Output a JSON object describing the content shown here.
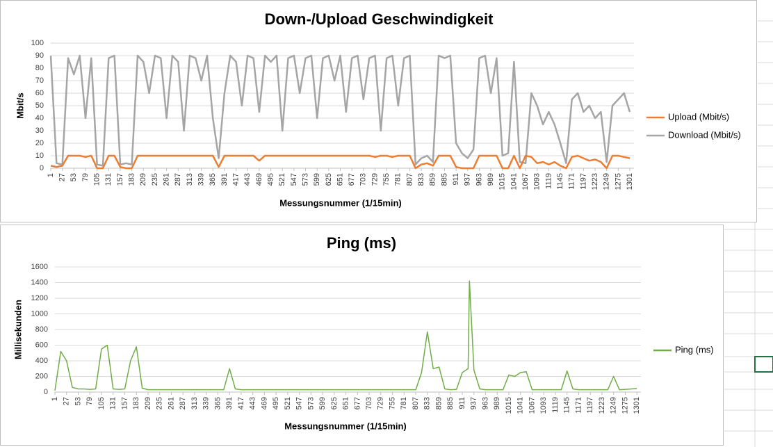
{
  "chart_data": [
    {
      "type": "line",
      "title": "Down-/Upload Geschwindigkeit",
      "x_label": "Messungsnummer (1/15min)",
      "y_label": "Mbit/s",
      "x": [
        1,
        14,
        27,
        40,
        53,
        66,
        79,
        92,
        105,
        118,
        131,
        144,
        157,
        170,
        183,
        196,
        209,
        222,
        235,
        248,
        261,
        274,
        287,
        300,
        313,
        326,
        339,
        352,
        365,
        378,
        391,
        404,
        417,
        430,
        443,
        456,
        469,
        482,
        495,
        508,
        521,
        534,
        547,
        560,
        573,
        586,
        599,
        612,
        625,
        638,
        651,
        664,
        677,
        690,
        703,
        716,
        729,
        742,
        755,
        768,
        781,
        794,
        807,
        820,
        833,
        846,
        859,
        872,
        885,
        898,
        911,
        924,
        937,
        950,
        963,
        976,
        989,
        1002,
        1015,
        1028,
        1041,
        1054,
        1067,
        1080,
        1093,
        1106,
        1119,
        1132,
        1145,
        1158,
        1171,
        1184,
        1197,
        1210,
        1223,
        1236,
        1249,
        1262,
        1275,
        1288,
        1301
      ],
      "series": [
        {
          "name": "Upload (Mbit/s)",
          "color": "#ed7d31",
          "values": [
            2,
            1,
            2,
            10,
            10,
            10,
            9,
            10,
            0,
            0,
            10,
            10,
            1,
            0,
            0,
            10,
            10,
            10,
            10,
            10,
            10,
            10,
            10,
            10,
            10,
            10,
            10,
            10,
            10,
            1,
            10,
            10,
            10,
            10,
            10,
            10,
            6,
            10,
            10,
            10,
            10,
            10,
            10,
            10,
            10,
            10,
            10,
            10,
            10,
            10,
            10,
            10,
            10,
            10,
            10,
            10,
            9,
            10,
            10,
            9,
            10,
            10,
            10,
            0,
            3,
            4,
            2,
            10,
            10,
            10,
            1,
            0,
            0,
            0,
            10,
            10,
            10,
            10,
            0,
            0,
            10,
            0,
            10,
            9,
            4,
            5,
            3,
            5,
            2,
            0,
            9,
            10,
            8,
            6,
            7,
            5,
            0,
            10,
            10,
            9,
            8
          ]
        },
        {
          "name": "Download (Mbit/s)",
          "color": "#a5a5a5",
          "values": [
            90,
            4,
            3,
            88,
            75,
            90,
            40,
            88,
            3,
            2,
            88,
            90,
            3,
            4,
            3,
            90,
            85,
            60,
            90,
            88,
            40,
            90,
            85,
            30,
            90,
            88,
            70,
            90,
            40,
            8,
            60,
            90,
            85,
            50,
            90,
            88,
            45,
            90,
            85,
            90,
            30,
            88,
            90,
            60,
            88,
            90,
            40,
            88,
            90,
            70,
            90,
            45,
            88,
            90,
            55,
            88,
            90,
            30,
            88,
            90,
            50,
            88,
            90,
            3,
            8,
            10,
            5,
            90,
            88,
            90,
            20,
            12,
            8,
            15,
            88,
            90,
            60,
            88,
            10,
            12,
            85,
            5,
            4,
            60,
            50,
            35,
            45,
            35,
            20,
            4,
            55,
            60,
            45,
            50,
            40,
            45,
            5,
            50,
            55,
            60,
            45
          ]
        }
      ],
      "xlim": [
        1,
        1310
      ],
      "ylim": [
        0,
        100
      ],
      "xticks": [
        1,
        27,
        53,
        79,
        105,
        131,
        157,
        183,
        209,
        235,
        261,
        287,
        313,
        339,
        365,
        391,
        417,
        443,
        469,
        495,
        521,
        547,
        573,
        599,
        625,
        651,
        677,
        703,
        729,
        755,
        781,
        807,
        833,
        859,
        885,
        911,
        937,
        963,
        989,
        1015,
        1041,
        1067,
        1093,
        1119,
        1145,
        1171,
        1197,
        1223,
        1249,
        1275,
        1301
      ],
      "yticks": [
        0,
        10,
        20,
        30,
        40,
        50,
        60,
        70,
        80,
        90,
        100
      ],
      "grid": true,
      "legend": "right"
    },
    {
      "type": "line",
      "title": "Ping (ms)",
      "x_label": "Messungsnummer (1/15min)",
      "y_label": "Millisekunden",
      "x": [
        1,
        14,
        27,
        40,
        53,
        66,
        79,
        92,
        105,
        118,
        131,
        144,
        157,
        170,
        183,
        196,
        209,
        222,
        235,
        248,
        261,
        274,
        287,
        300,
        313,
        326,
        339,
        352,
        365,
        378,
        391,
        404,
        417,
        430,
        443,
        456,
        469,
        482,
        495,
        508,
        521,
        534,
        547,
        560,
        573,
        586,
        599,
        612,
        625,
        638,
        651,
        664,
        677,
        690,
        703,
        716,
        729,
        742,
        755,
        768,
        781,
        794,
        807,
        820,
        833,
        846,
        859,
        872,
        885,
        898,
        911,
        924,
        927,
        937,
        950,
        963,
        976,
        989,
        1002,
        1015,
        1028,
        1041,
        1054,
        1067,
        1080,
        1093,
        1106,
        1119,
        1132,
        1145,
        1158,
        1171,
        1184,
        1197,
        1210,
        1223,
        1236,
        1249,
        1262,
        1275,
        1288,
        1301
      ],
      "series": [
        {
          "name": "Ping (ms)",
          "color": "#70ad47",
          "values": [
            20,
            520,
            400,
            60,
            40,
            40,
            35,
            40,
            550,
            600,
            40,
            35,
            40,
            400,
            580,
            50,
            30,
            30,
            30,
            30,
            30,
            30,
            30,
            30,
            30,
            30,
            30,
            30,
            30,
            30,
            300,
            40,
            30,
            30,
            30,
            30,
            30,
            30,
            30,
            30,
            30,
            30,
            30,
            30,
            30,
            30,
            30,
            30,
            30,
            30,
            30,
            30,
            30,
            30,
            30,
            30,
            30,
            30,
            30,
            30,
            30,
            30,
            30,
            250,
            770,
            300,
            320,
            40,
            30,
            35,
            250,
            300,
            1420,
            280,
            40,
            30,
            30,
            30,
            30,
            220,
            200,
            250,
            260,
            30,
            30,
            30,
            30,
            30,
            30,
            270,
            40,
            30,
            30,
            30,
            30,
            30,
            30,
            200,
            30,
            35,
            40,
            45
          ]
        }
      ],
      "xlim": [
        1,
        1310
      ],
      "ylim": [
        0,
        1600
      ],
      "xticks": [
        1,
        27,
        53,
        79,
        105,
        131,
        157,
        183,
        209,
        235,
        261,
        287,
        313,
        339,
        365,
        391,
        417,
        443,
        469,
        495,
        521,
        547,
        573,
        599,
        625,
        651,
        677,
        703,
        729,
        755,
        781,
        807,
        833,
        859,
        885,
        911,
        937,
        963,
        989,
        1015,
        1041,
        1067,
        1093,
        1119,
        1145,
        1171,
        1197,
        1223,
        1249,
        1275,
        1301
      ],
      "yticks": [
        0,
        200,
        400,
        600,
        800,
        1000,
        1200,
        1400,
        1600
      ],
      "grid": true,
      "legend": "right"
    }
  ]
}
